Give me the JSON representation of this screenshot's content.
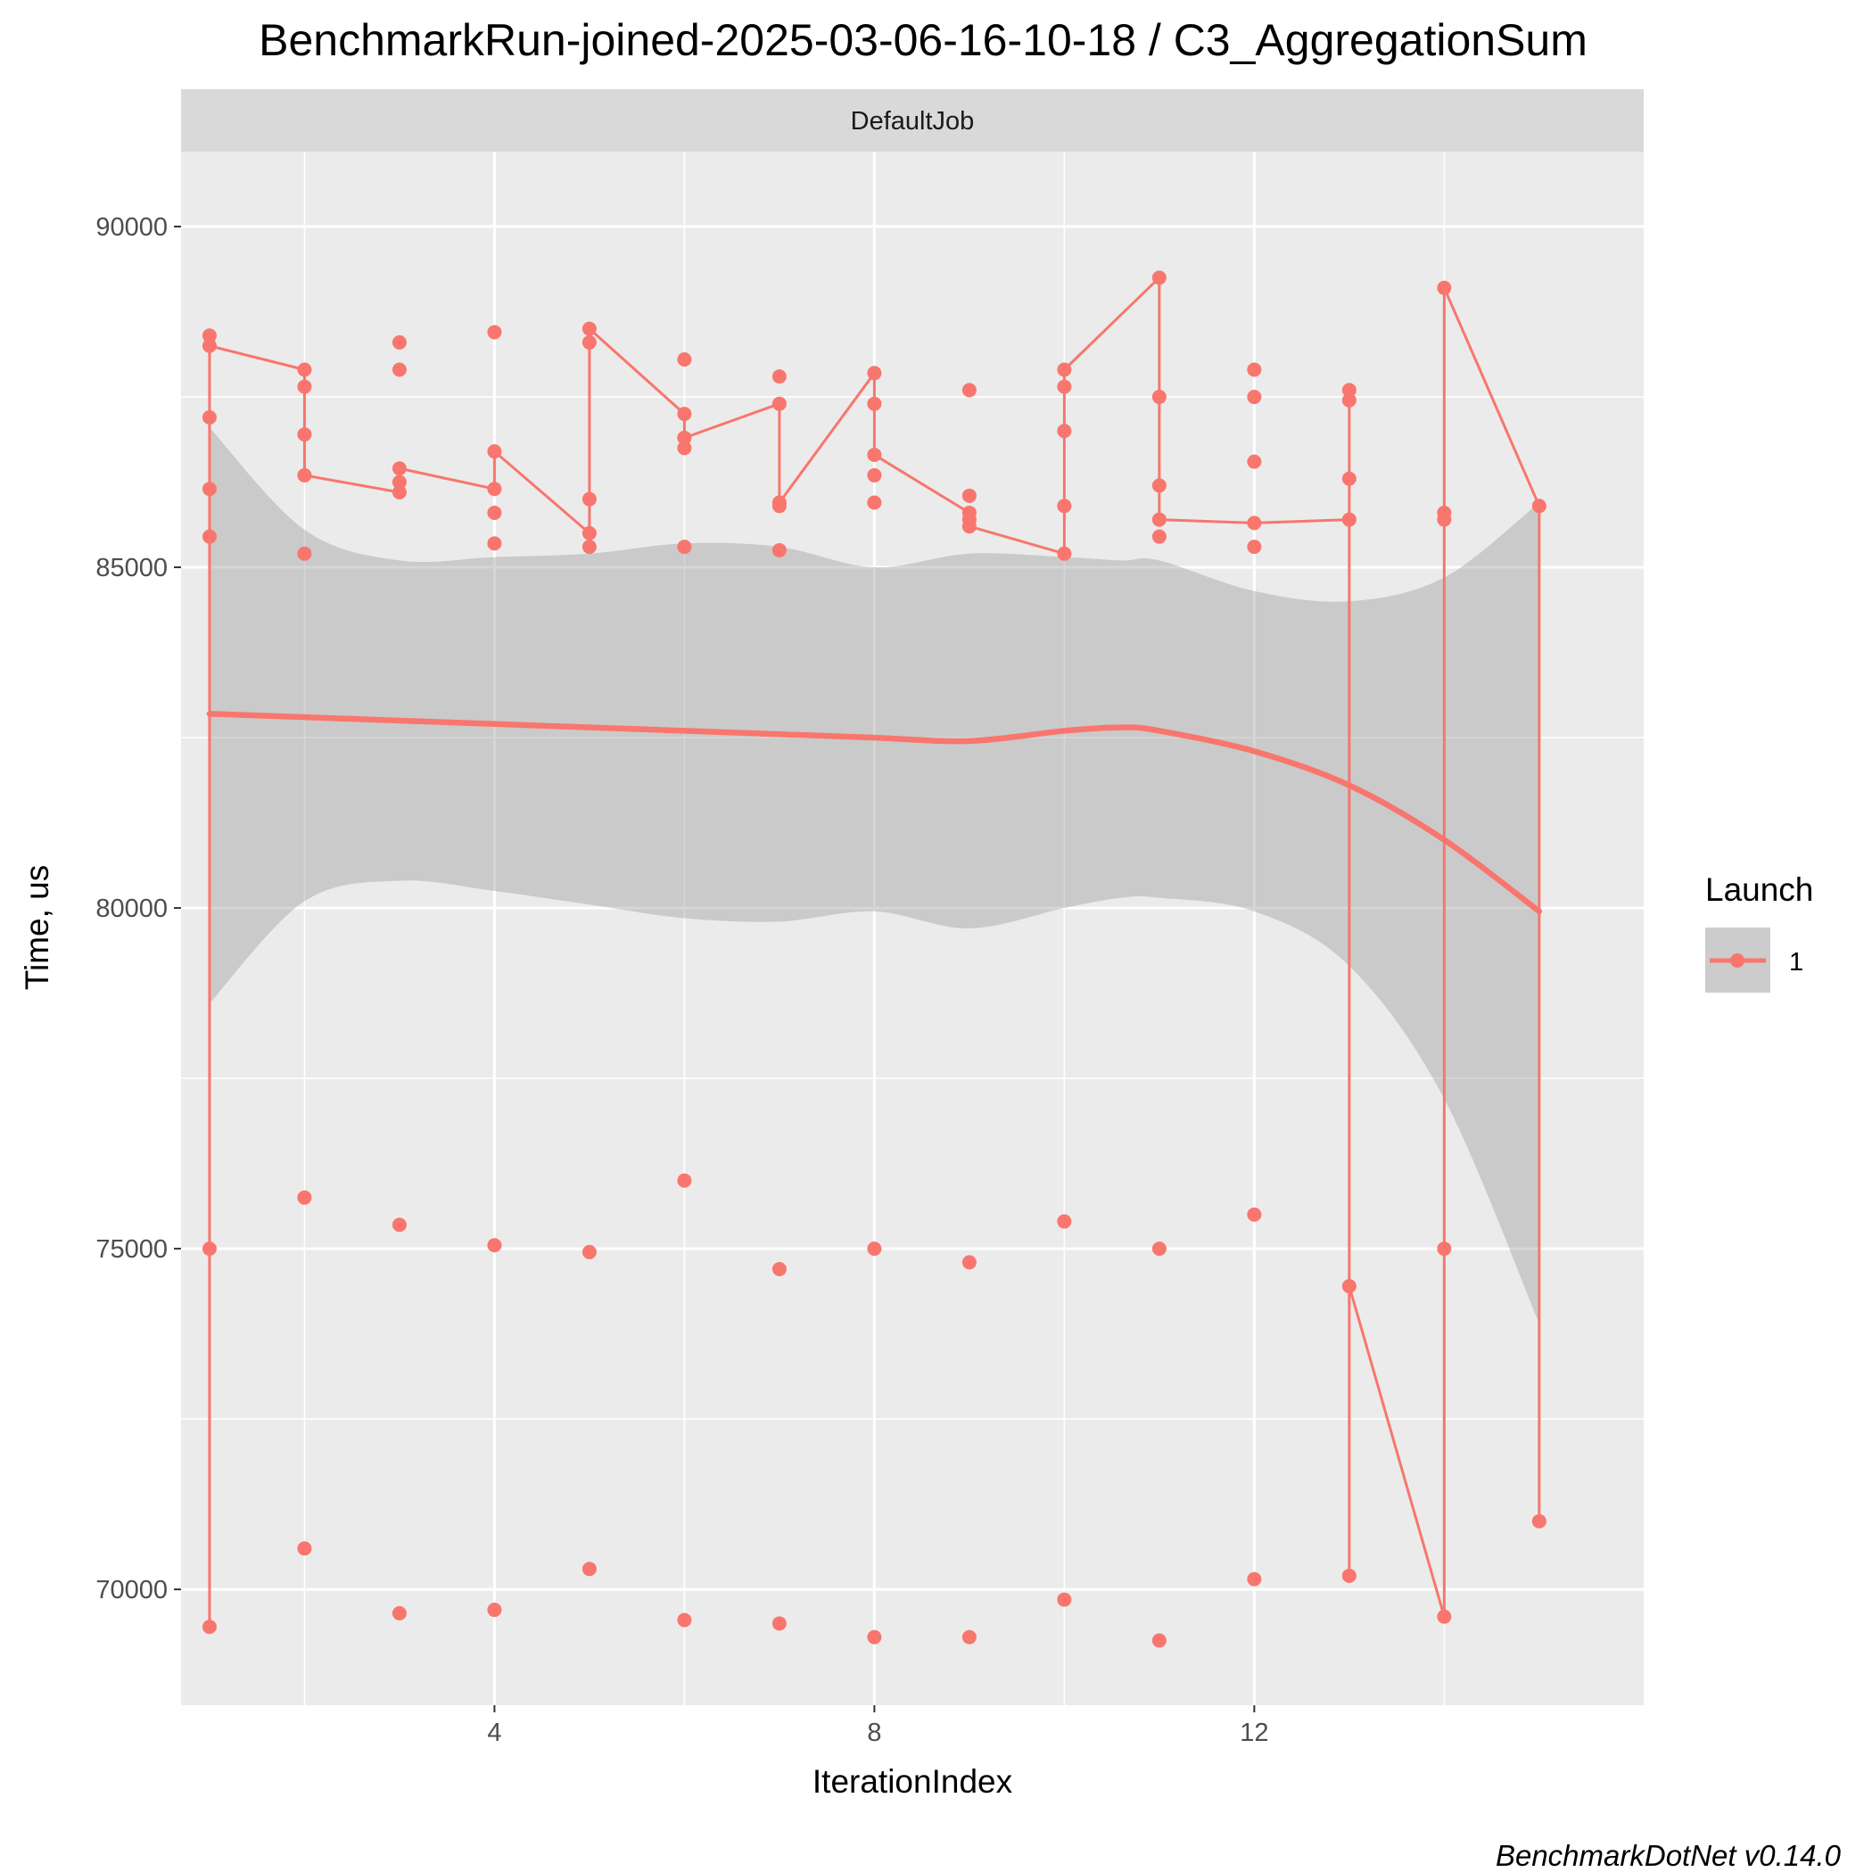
{
  "chart_data": {
    "type": "line",
    "title": "BenchmarkRun-joined-2025-03-06-16-10-18 / C3_AggregationSum",
    "facet": "DefaultJob",
    "xlabel": "IterationIndex",
    "ylabel": "Time, us",
    "caption": "BenchmarkDotNet v0.14.0",
    "xlim": [
      0.7,
      16.1
    ],
    "ylim": [
      68300,
      91100
    ],
    "x_ticks": [
      4,
      8,
      12
    ],
    "x_tick_labels": [
      "4",
      "8",
      "12"
    ],
    "y_ticks": [
      70000,
      75000,
      80000,
      85000,
      90000
    ],
    "y_tick_labels": [
      "70000",
      "75000",
      "80000",
      "85000",
      "90000"
    ],
    "grid": true,
    "legend": {
      "title": "Launch",
      "position": "right",
      "entries": [
        "1"
      ]
    },
    "colors": {
      "series": "#f8766d",
      "band": "#999999",
      "panel": "#ebebeb",
      "strip": "#d9d9d9",
      "grid": "#ffffff"
    },
    "series": [
      {
        "name": "1",
        "points": [
          {
            "x": 1,
            "y": 88400
          },
          {
            "x": 1,
            "y": 88250
          },
          {
            "x": 1,
            "y": 87200
          },
          {
            "x": 1,
            "y": 86150
          },
          {
            "x": 1,
            "y": 85450
          },
          {
            "x": 1,
            "y": 75000
          },
          {
            "x": 1,
            "y": 69450
          },
          {
            "x": 2,
            "y": 87900
          },
          {
            "x": 2,
            "y": 87650
          },
          {
            "x": 2,
            "y": 86950
          },
          {
            "x": 2,
            "y": 86350
          },
          {
            "x": 2,
            "y": 85200
          },
          {
            "x": 2,
            "y": 75750
          },
          {
            "x": 2,
            "y": 70600
          },
          {
            "x": 3,
            "y": 88300
          },
          {
            "x": 3,
            "y": 87900
          },
          {
            "x": 3,
            "y": 86450
          },
          {
            "x": 3,
            "y": 86250
          },
          {
            "x": 3,
            "y": 86100
          },
          {
            "x": 3,
            "y": 75350
          },
          {
            "x": 3,
            "y": 69650
          },
          {
            "x": 4,
            "y": 88450
          },
          {
            "x": 4,
            "y": 86700
          },
          {
            "x": 4,
            "y": 86150
          },
          {
            "x": 4,
            "y": 85800
          },
          {
            "x": 4,
            "y": 85350
          },
          {
            "x": 4,
            "y": 75050
          },
          {
            "x": 4,
            "y": 69700
          },
          {
            "x": 5,
            "y": 88500
          },
          {
            "x": 5,
            "y": 88300
          },
          {
            "x": 5,
            "y": 86000
          },
          {
            "x": 5,
            "y": 85500
          },
          {
            "x": 5,
            "y": 85300
          },
          {
            "x": 5,
            "y": 74950
          },
          {
            "x": 5,
            "y": 70300
          },
          {
            "x": 6,
            "y": 88050
          },
          {
            "x": 6,
            "y": 87250
          },
          {
            "x": 6,
            "y": 86900
          },
          {
            "x": 6,
            "y": 86750
          },
          {
            "x": 6,
            "y": 85300
          },
          {
            "x": 6,
            "y": 76000
          },
          {
            "x": 6,
            "y": 69550
          },
          {
            "x": 7,
            "y": 87800
          },
          {
            "x": 7,
            "y": 87400
          },
          {
            "x": 7,
            "y": 85950
          },
          {
            "x": 7,
            "y": 85900
          },
          {
            "x": 7,
            "y": 85250
          },
          {
            "x": 7,
            "y": 74700
          },
          {
            "x": 7,
            "y": 69500
          },
          {
            "x": 8,
            "y": 87850
          },
          {
            "x": 8,
            "y": 87400
          },
          {
            "x": 8,
            "y": 86650
          },
          {
            "x": 8,
            "y": 86350
          },
          {
            "x": 8,
            "y": 85950
          },
          {
            "x": 8,
            "y": 75000
          },
          {
            "x": 8,
            "y": 69300
          },
          {
            "x": 9,
            "y": 87600
          },
          {
            "x": 9,
            "y": 86050
          },
          {
            "x": 9,
            "y": 85800
          },
          {
            "x": 9,
            "y": 85700
          },
          {
            "x": 9,
            "y": 85600
          },
          {
            "x": 9,
            "y": 74800
          },
          {
            "x": 9,
            "y": 69300
          },
          {
            "x": 10,
            "y": 87900
          },
          {
            "x": 10,
            "y": 87650
          },
          {
            "x": 10,
            "y": 87000
          },
          {
            "x": 10,
            "y": 85900
          },
          {
            "x": 10,
            "y": 85200
          },
          {
            "x": 10,
            "y": 75400
          },
          {
            "x": 10,
            "y": 69850
          },
          {
            "x": 11,
            "y": 89250
          },
          {
            "x": 11,
            "y": 87500
          },
          {
            "x": 11,
            "y": 86200
          },
          {
            "x": 11,
            "y": 85700
          },
          {
            "x": 11,
            "y": 85450
          },
          {
            "x": 11,
            "y": 75000
          },
          {
            "x": 11,
            "y": 69250
          },
          {
            "x": 12,
            "y": 87900
          },
          {
            "x": 12,
            "y": 87500
          },
          {
            "x": 12,
            "y": 86550
          },
          {
            "x": 12,
            "y": 85650
          },
          {
            "x": 12,
            "y": 85300
          },
          {
            "x": 12,
            "y": 75500
          },
          {
            "x": 12,
            "y": 70150
          },
          {
            "x": 13,
            "y": 87600
          },
          {
            "x": 13,
            "y": 87450
          },
          {
            "x": 13,
            "y": 86300
          },
          {
            "x": 13,
            "y": 85700
          },
          {
            "x": 13,
            "y": 74450
          },
          {
            "x": 13,
            "y": 70200
          },
          {
            "x": 14,
            "y": 89100
          },
          {
            "x": 14,
            "y": 85800
          },
          {
            "x": 14,
            "y": 85700
          },
          {
            "x": 14,
            "y": 75000
          },
          {
            "x": 14,
            "y": 69600
          },
          {
            "x": 15,
            "y": 85900
          },
          {
            "x": 15,
            "y": 71000
          }
        ],
        "path_order": [
          [
            1,
            69450
          ],
          [
            1,
            88400
          ],
          [
            1,
            88250
          ],
          [
            2,
            87900
          ],
          [
            2,
            86350
          ],
          [
            3,
            86100
          ],
          [
            3,
            86450
          ],
          [
            4,
            86150
          ],
          [
            4,
            86700
          ],
          [
            5,
            85500
          ],
          [
            5,
            85300
          ],
          [
            5,
            88500
          ],
          [
            6,
            87250
          ],
          [
            6,
            86750
          ],
          [
            6,
            86900
          ],
          [
            7,
            87400
          ],
          [
            7,
            85900
          ],
          [
            7,
            85950
          ],
          [
            8,
            87850
          ],
          [
            8,
            86650
          ],
          [
            9,
            85800
          ],
          [
            9,
            85600
          ],
          [
            10,
            85200
          ],
          [
            10,
            87650
          ],
          [
            10,
            87900
          ],
          [
            11,
            89250
          ],
          [
            11,
            85700
          ],
          [
            12,
            85650
          ],
          [
            13,
            85700
          ],
          [
            13,
            87600
          ],
          [
            13,
            87450
          ],
          [
            13,
            70200
          ],
          [
            13,
            74450
          ],
          [
            14,
            69600
          ],
          [
            14,
            89100
          ],
          [
            15,
            85900
          ],
          [
            15,
            71000
          ]
        ],
        "smooth": {
          "x": [
            1,
            2,
            3,
            4,
            5,
            6,
            7,
            8,
            9,
            10,
            10.6,
            11,
            12,
            13,
            14,
            15
          ],
          "y": [
            82850,
            82800,
            82750,
            82700,
            82650,
            82600,
            82550,
            82500,
            82450,
            82600,
            82650,
            82600,
            82300,
            81800,
            81000,
            79950
          ],
          "lower": [
            78600,
            80100,
            80400,
            80250,
            80050,
            79850,
            79800,
            79950,
            79700,
            80000,
            80150,
            80150,
            79950,
            79150,
            77200,
            73900
          ],
          "upper": [
            87050,
            85550,
            85100,
            85150,
            85200,
            85350,
            85300,
            85000,
            85200,
            85150,
            85100,
            85100,
            84650,
            84500,
            84850,
            85950
          ]
        }
      }
    ]
  }
}
